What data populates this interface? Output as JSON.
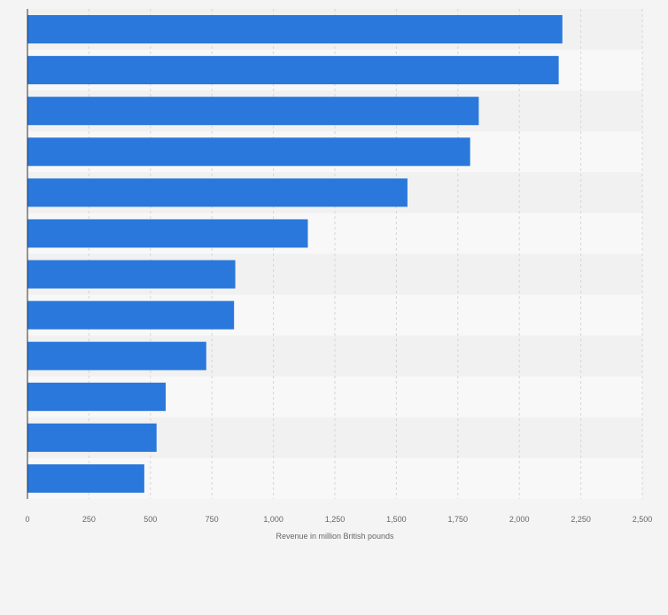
{
  "chart_data": {
    "type": "bar",
    "orientation": "horizontal",
    "categories": [
      "",
      "",
      "",
      "",
      "",
      "",
      "",
      "",
      "",
      "",
      "",
      ""
    ],
    "values": [
      2175,
      2160,
      1835,
      1800,
      1545,
      1140,
      845,
      840,
      727,
      562,
      525,
      475
    ],
    "title": "",
    "xlabel": "Revenue in million British pounds",
    "ylabel": "",
    "xlim": [
      0,
      2500
    ],
    "xticks": [
      0,
      250,
      500,
      750,
      1000,
      1250,
      1500,
      1750,
      2000,
      2250,
      2500
    ],
    "xtick_labels": [
      "0",
      "250",
      "500",
      "750",
      "1,000",
      "1,250",
      "1,500",
      "1,750",
      "2,000",
      "2,250",
      "2,500"
    ],
    "grid": true,
    "legend": "none"
  },
  "colors": {
    "bar": "#2a78db",
    "band_dark": "#f1f1f1",
    "band_light": "#f8f8f8",
    "grid": "#d6d6d6",
    "axis": "#333333",
    "tick_text": "#666666",
    "label_text": "#666666",
    "background": "#f4f4f4"
  }
}
